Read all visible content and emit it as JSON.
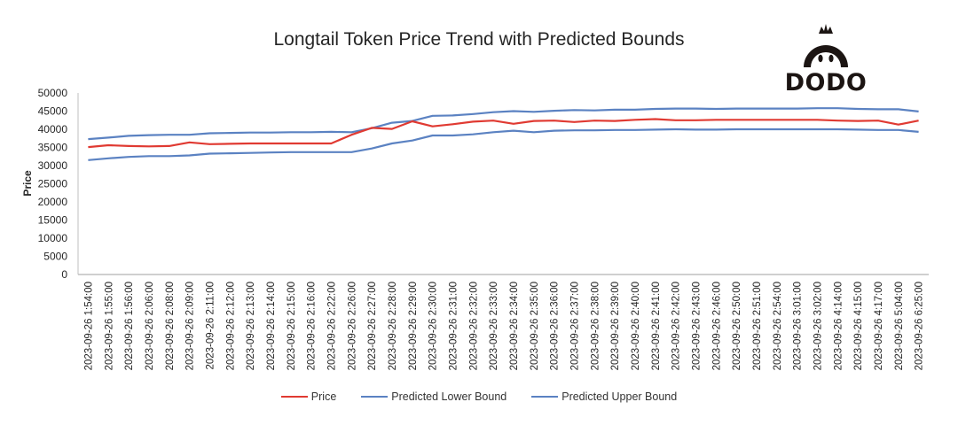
{
  "logo": {
    "text": "DODO",
    "icon": "dodo-bird-icon"
  },
  "chart_data": {
    "type": "line",
    "title": "Longtail Token Price Trend with Predicted Bounds",
    "xlabel": "",
    "ylabel": "Price",
    "ylim": [
      0,
      50000
    ],
    "yticks": [
      0,
      5000,
      10000,
      15000,
      20000,
      25000,
      30000,
      35000,
      40000,
      45000,
      50000
    ],
    "grid": false,
    "legend_position": "bottom",
    "categories": [
      "2023-09-26 1:54:00",
      "2023-09-26 1:55:00",
      "2023-09-26 1:56:00",
      "2023-09-26 2:06:00",
      "2023-09-26 2:08:00",
      "2023-09-26 2:09:00",
      "2023-09-26 2:11:00",
      "2023-09-26 2:12:00",
      "2023-09-26 2:13:00",
      "2023-09-26 2:14:00",
      "2023-09-26 2:15:00",
      "2023-09-26 2:16:00",
      "2023-09-26 2:22:00",
      "2023-09-26 2:26:00",
      "2023-09-26 2:27:00",
      "2023-09-26 2:28:00",
      "2023-09-26 2:29:00",
      "2023-09-26 2:30:00",
      "2023-09-26 2:31:00",
      "2023-09-26 2:32:00",
      "2023-09-26 2:33:00",
      "2023-09-26 2:34:00",
      "2023-09-26 2:35:00",
      "2023-09-26 2:36:00",
      "2023-09-26 2:37:00",
      "2023-09-26 2:38:00",
      "2023-09-26 2:39:00",
      "2023-09-26 2:40:00",
      "2023-09-26 2:41:00",
      "2023-09-26 2:42:00",
      "2023-09-26 2:43:00",
      "2023-09-26 2:46:00",
      "2023-09-26 2:50:00",
      "2023-09-26 2:51:00",
      "2023-09-26 2:54:00",
      "2023-09-26 3:01:00",
      "2023-09-26 3:02:00",
      "2023-09-26 4:14:00",
      "2023-09-26 4:15:00",
      "2023-09-26 4:17:00",
      "2023-09-26 5:04:00",
      "2023-09-26 6:25:00"
    ],
    "series": [
      {
        "name": "Price",
        "color": "#e03a32",
        "values": [
          35100,
          35600,
          35400,
          35300,
          35400,
          36400,
          35900,
          36000,
          36100,
          36100,
          36100,
          36100,
          36100,
          38500,
          40400,
          40100,
          42200,
          40800,
          41400,
          42100,
          42400,
          41500,
          42300,
          42400,
          42000,
          42400,
          42300,
          42600,
          42800,
          42500,
          42500,
          42600,
          42600,
          42600,
          42600,
          42600,
          42600,
          42400,
          42300,
          42400,
          41300,
          42400
        ]
      },
      {
        "name": "Predicted Lower Bound",
        "color": "#5b82c2",
        "values": [
          31500,
          32000,
          32400,
          32600,
          32600,
          32800,
          33300,
          33400,
          33500,
          33600,
          33700,
          33700,
          33700,
          33700,
          34700,
          36100,
          36900,
          38300,
          38300,
          38600,
          39200,
          39600,
          39200,
          39600,
          39700,
          39700,
          39800,
          39800,
          39900,
          40000,
          39900,
          39900,
          40000,
          40000,
          40000,
          40000,
          40000,
          40000,
          39900,
          39800,
          39800,
          39300
        ]
      },
      {
        "name": "Predicted Upper Bound",
        "color": "#5b82c2",
        "values": [
          37300,
          37700,
          38200,
          38400,
          38500,
          38500,
          38900,
          39000,
          39100,
          39100,
          39200,
          39200,
          39300,
          39200,
          40300,
          41800,
          42300,
          43700,
          43800,
          44200,
          44700,
          45000,
          44800,
          45100,
          45300,
          45200,
          45400,
          45400,
          45600,
          45700,
          45700,
          45600,
          45700,
          45700,
          45700,
          45700,
          45800,
          45800,
          45600,
          45500,
          45500,
          44900
        ]
      }
    ]
  }
}
